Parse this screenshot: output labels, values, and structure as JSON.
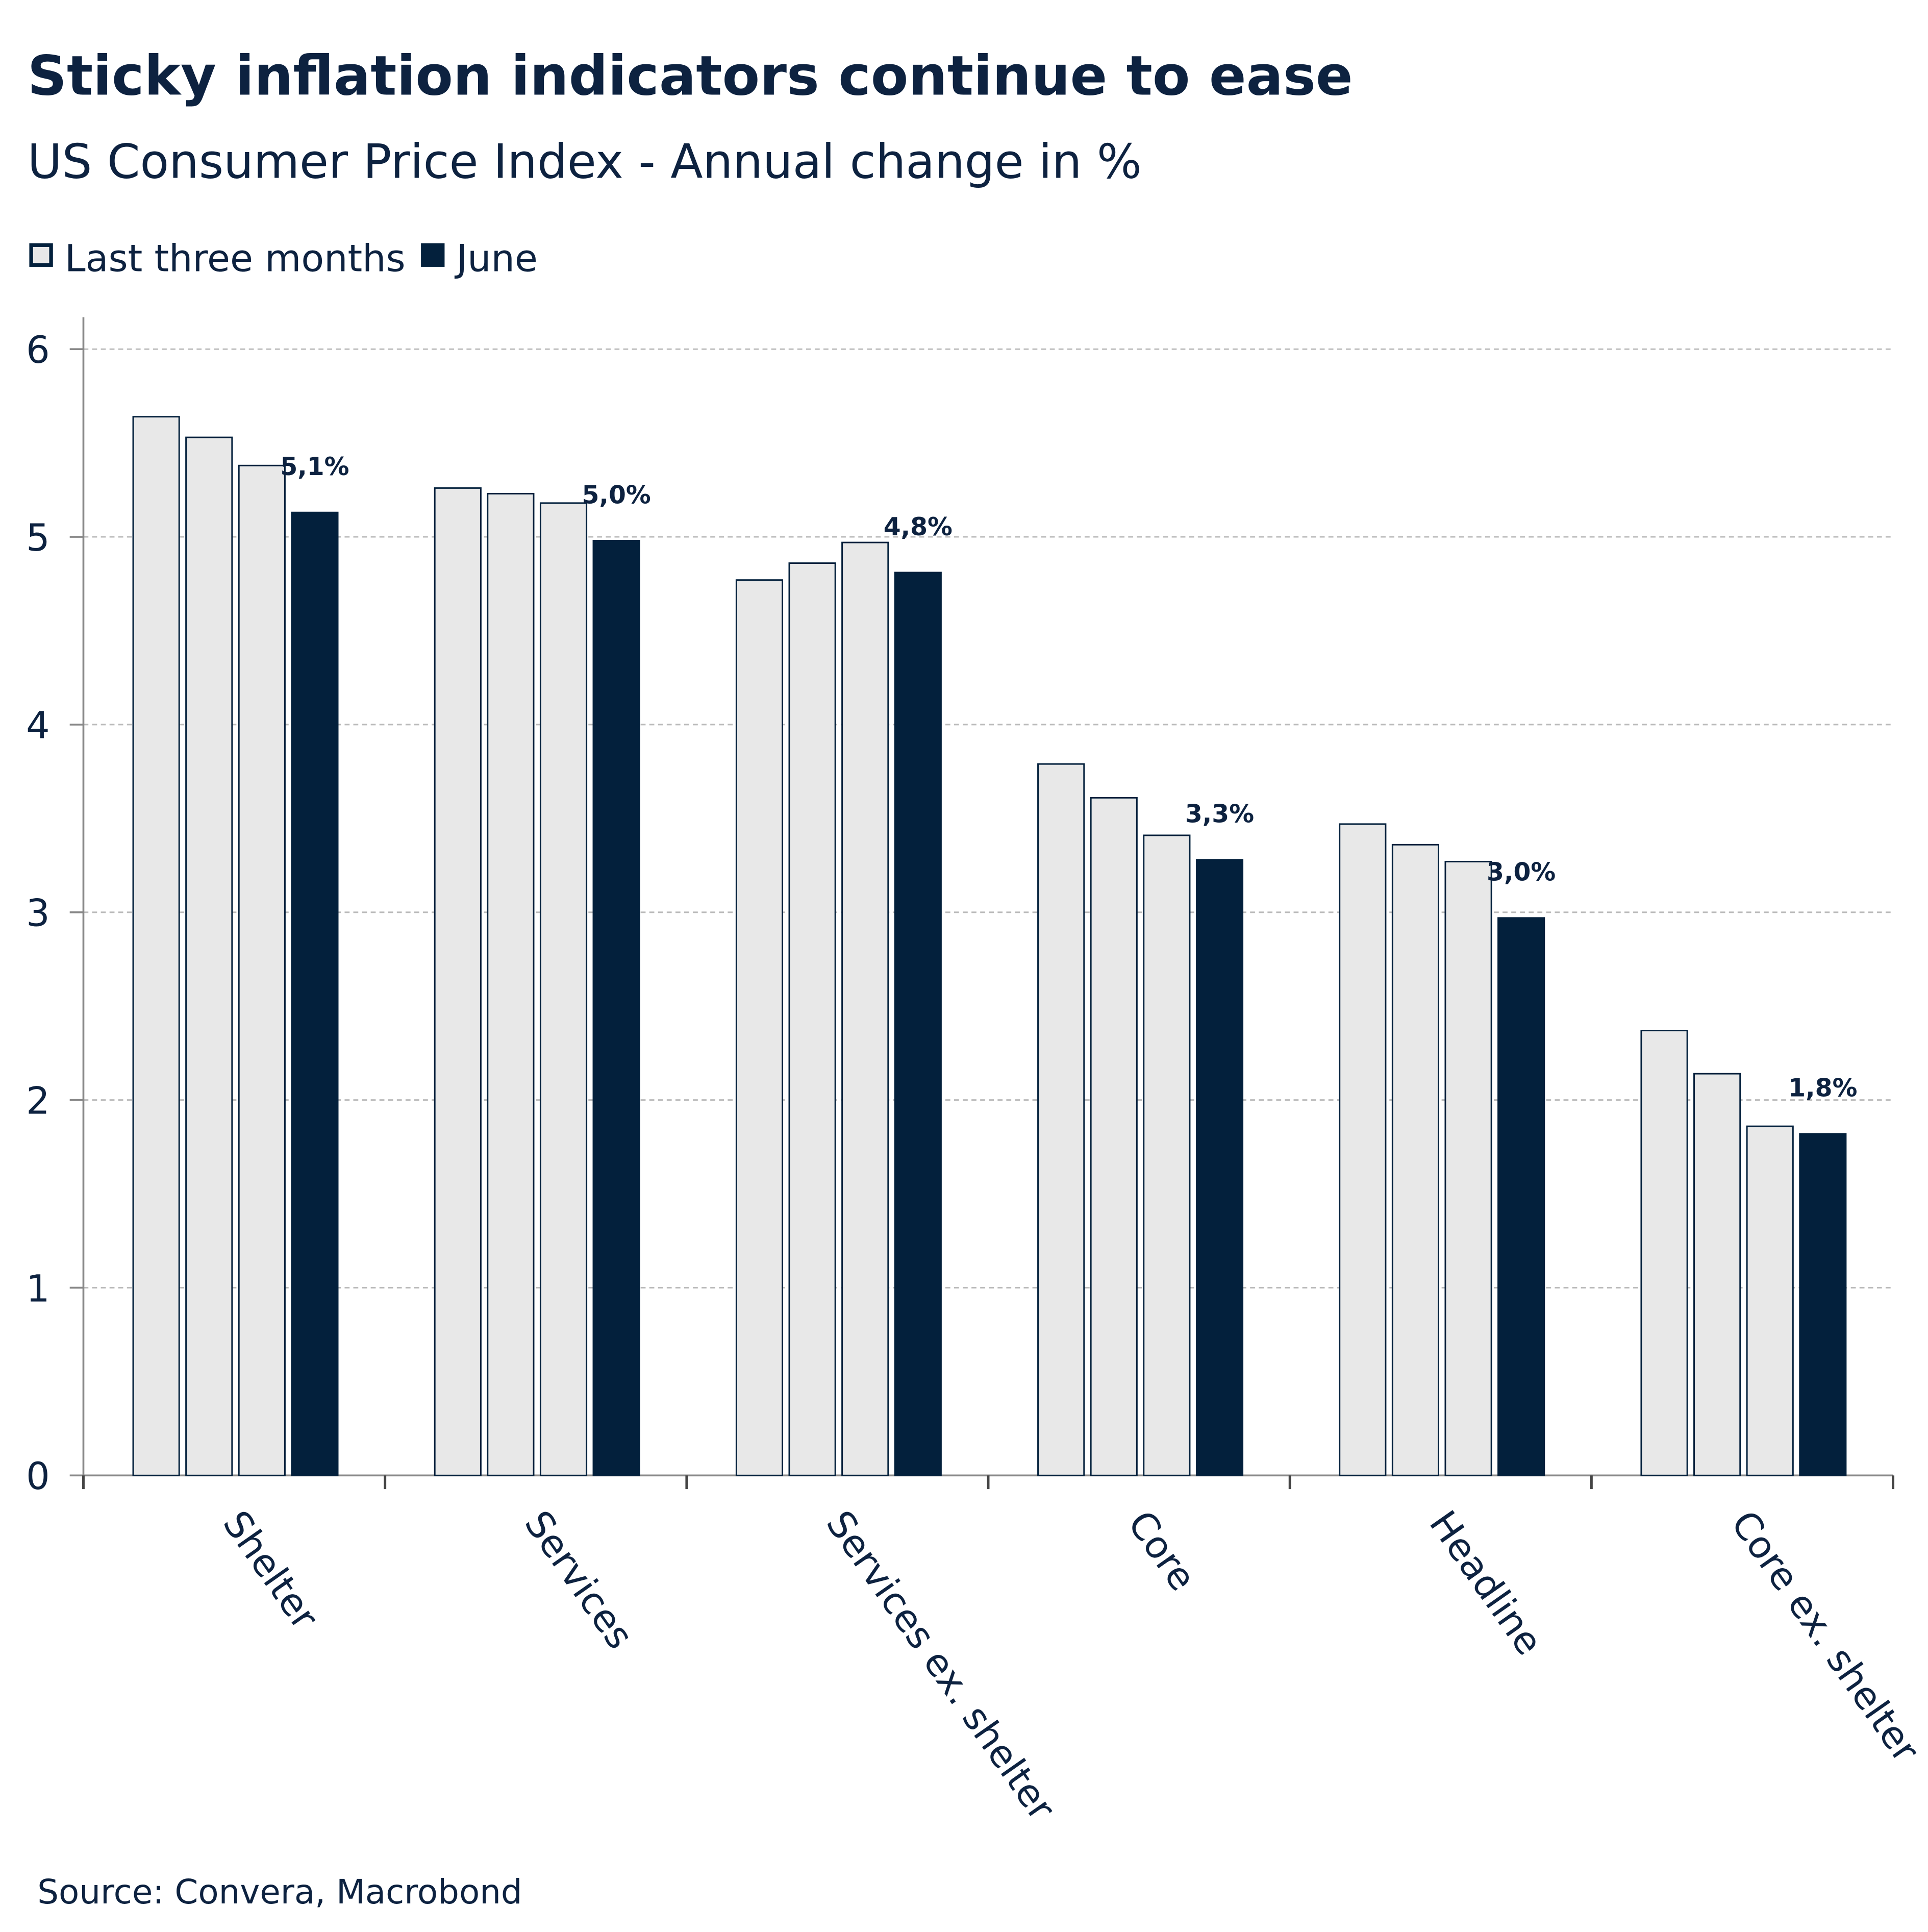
{
  "chart_data": {
    "type": "grouped_bar",
    "title": "Sticky inflation indicators continue to ease",
    "subtitle": "US Consumer Price Index - Annual change in %",
    "source": "Source: Convera, Macrobond",
    "categories": [
      "Shelter",
      "Services",
      "Services ex. shelter",
      "Core",
      "Headline",
      "Core ex. shelter"
    ],
    "series": [
      {
        "name": "Last three months",
        "color": "#e8e8e8",
        "values": [
          [
            5.64,
            5.53,
            5.38
          ],
          [
            5.26,
            5.23,
            5.18
          ],
          [
            4.77,
            4.86,
            4.97
          ],
          [
            3.79,
            3.61,
            3.41
          ],
          [
            3.47,
            3.36,
            3.27
          ],
          [
            2.37,
            2.14,
            1.86
          ]
        ]
      },
      {
        "name": "June",
        "color": "#03203c",
        "values": [
          5.13,
          4.98,
          4.81,
          3.28,
          2.97,
          1.82
        ],
        "value_labels": [
          "5,1%",
          "5,0%",
          "4,8%",
          "3,3%",
          "3,0%",
          "1,8%"
        ]
      }
    ],
    "ylim": [
      0,
      6.17
    ],
    "yticks": [
      0,
      1,
      2,
      3,
      4,
      5,
      6
    ],
    "grid": true
  }
}
